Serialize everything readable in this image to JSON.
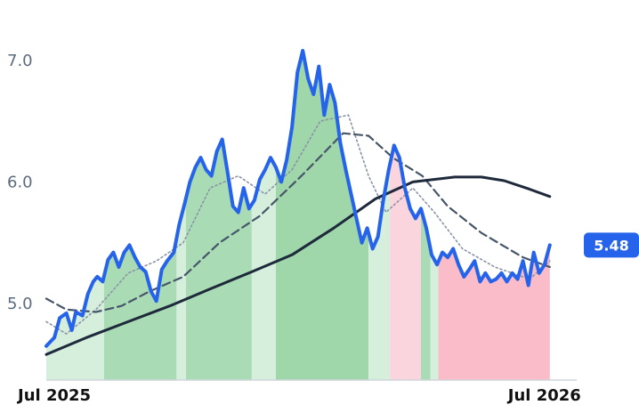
{
  "chart_data": {
    "type": "area",
    "x_range": [
      "2025-06-25",
      "2026-07-25"
    ],
    "ylim": [
      4.37,
      7.35
    ],
    "y_ticks": [
      {
        "value": 5.0,
        "label": "5.0"
      },
      {
        "value": 6.0,
        "label": "6.0"
      },
      {
        "value": 7.0,
        "label": "7.0"
      }
    ],
    "x_ticks": [
      {
        "date": "2025-07-01",
        "label": "Jul 2025"
      },
      {
        "date": "2026-07-01",
        "label": "Jul 2026"
      }
    ],
    "grid": false,
    "last_value_label": "5.48",
    "colors": {
      "price_line": "#2563eb",
      "slow_ma_line": "#1e293b",
      "mid_ma_line": "#475569",
      "fast_ma_line": "#8a93a8",
      "bull_fill": "#7fc98f",
      "bear_fill": "#f7a8b8",
      "badge": "#2563eb"
    },
    "series": [
      {
        "key": "price",
        "points": [
          [
            "2025-06-25",
            4.65
          ],
          [
            "2025-07-01",
            4.72
          ],
          [
            "2025-07-05",
            4.88
          ],
          [
            "2025-07-10",
            4.92
          ],
          [
            "2025-07-14",
            4.78
          ],
          [
            "2025-07-17",
            4.93
          ],
          [
            "2025-07-22",
            4.9
          ],
          [
            "2025-07-26",
            5.08
          ],
          [
            "2025-07-30",
            5.18
          ],
          [
            "2025-08-02",
            5.22
          ],
          [
            "2025-08-06",
            5.18
          ],
          [
            "2025-08-10",
            5.36
          ],
          [
            "2025-08-14",
            5.42
          ],
          [
            "2025-08-18",
            5.3
          ],
          [
            "2025-08-22",
            5.42
          ],
          [
            "2025-08-26",
            5.48
          ],
          [
            "2025-08-30",
            5.38
          ],
          [
            "2025-09-03",
            5.3
          ],
          [
            "2025-09-07",
            5.26
          ],
          [
            "2025-09-11",
            5.1
          ],
          [
            "2025-09-15",
            5.02
          ],
          [
            "2025-09-19",
            5.28
          ],
          [
            "2025-09-23",
            5.35
          ],
          [
            "2025-09-28",
            5.42
          ],
          [
            "2025-10-02",
            5.65
          ],
          [
            "2025-10-06",
            5.82
          ],
          [
            "2025-10-10",
            6.0
          ],
          [
            "2025-10-14",
            6.12
          ],
          [
            "2025-10-18",
            6.2
          ],
          [
            "2025-10-22",
            6.1
          ],
          [
            "2025-10-26",
            6.05
          ],
          [
            "2025-10-30",
            6.25
          ],
          [
            "2025-11-03",
            6.35
          ],
          [
            "2025-11-07",
            6.08
          ],
          [
            "2025-11-11",
            5.8
          ],
          [
            "2025-11-15",
            5.75
          ],
          [
            "2025-11-19",
            5.95
          ],
          [
            "2025-11-23",
            5.78
          ],
          [
            "2025-11-27",
            5.85
          ],
          [
            "2025-12-01",
            6.02
          ],
          [
            "2025-12-05",
            6.1
          ],
          [
            "2025-12-09",
            6.2
          ],
          [
            "2025-12-13",
            6.12
          ],
          [
            "2025-12-17",
            6.0
          ],
          [
            "2025-12-21",
            6.18
          ],
          [
            "2025-12-25",
            6.45
          ],
          [
            "2025-12-29",
            6.9
          ],
          [
            "2026-01-02",
            7.08
          ],
          [
            "2026-01-06",
            6.85
          ],
          [
            "2026-01-10",
            6.72
          ],
          [
            "2026-01-14",
            6.95
          ],
          [
            "2026-01-18",
            6.55
          ],
          [
            "2026-01-22",
            6.8
          ],
          [
            "2026-01-26",
            6.65
          ],
          [
            "2026-01-30",
            6.32
          ],
          [
            "2026-02-03",
            6.1
          ],
          [
            "2026-02-07",
            5.9
          ],
          [
            "2026-02-11",
            5.7
          ],
          [
            "2026-02-15",
            5.5
          ],
          [
            "2026-02-19",
            5.62
          ],
          [
            "2026-02-23",
            5.45
          ],
          [
            "2026-02-27",
            5.55
          ],
          [
            "2026-03-03",
            5.85
          ],
          [
            "2026-03-07",
            6.1
          ],
          [
            "2026-03-11",
            6.3
          ],
          [
            "2026-03-15",
            6.2
          ],
          [
            "2026-03-19",
            5.95
          ],
          [
            "2026-03-23",
            5.78
          ],
          [
            "2026-03-27",
            5.7
          ],
          [
            "2026-03-31",
            5.78
          ],
          [
            "2026-04-04",
            5.62
          ],
          [
            "2026-04-08",
            5.4
          ],
          [
            "2026-04-12",
            5.32
          ],
          [
            "2026-04-16",
            5.42
          ],
          [
            "2026-04-20",
            5.38
          ],
          [
            "2026-04-24",
            5.45
          ],
          [
            "2026-04-28",
            5.32
          ],
          [
            "2026-05-02",
            5.22
          ],
          [
            "2026-05-06",
            5.28
          ],
          [
            "2026-05-10",
            5.35
          ],
          [
            "2026-05-14",
            5.18
          ],
          [
            "2026-05-18",
            5.25
          ],
          [
            "2026-05-22",
            5.18
          ],
          [
            "2026-05-26",
            5.2
          ],
          [
            "2026-05-30",
            5.25
          ],
          [
            "2026-06-03",
            5.18
          ],
          [
            "2026-06-07",
            5.25
          ],
          [
            "2026-06-11",
            5.2
          ],
          [
            "2026-06-15",
            5.35
          ],
          [
            "2026-06-19",
            5.15
          ],
          [
            "2026-06-23",
            5.42
          ],
          [
            "2026-06-27",
            5.25
          ],
          [
            "2026-07-01",
            5.32
          ],
          [
            "2026-07-05",
            5.48
          ]
        ]
      },
      {
        "key": "slow_ma",
        "points": [
          [
            "2025-06-25",
            4.58
          ],
          [
            "2025-07-25",
            4.72
          ],
          [
            "2025-08-25",
            4.85
          ],
          [
            "2025-09-25",
            4.98
          ],
          [
            "2025-10-25",
            5.12
          ],
          [
            "2025-11-25",
            5.26
          ],
          [
            "2025-12-25",
            5.4
          ],
          [
            "2026-01-25",
            5.62
          ],
          [
            "2026-02-25",
            5.86
          ],
          [
            "2026-03-25",
            6.0
          ],
          [
            "2026-04-25",
            6.04
          ],
          [
            "2026-05-15",
            6.04
          ],
          [
            "2026-06-01",
            6.01
          ],
          [
            "2026-06-20",
            5.94
          ],
          [
            "2026-07-05",
            5.88
          ]
        ]
      },
      {
        "key": "mid_ma",
        "points": [
          [
            "2025-06-25",
            5.04
          ],
          [
            "2025-07-10",
            4.95
          ],
          [
            "2025-08-01",
            4.93
          ],
          [
            "2025-08-20",
            4.98
          ],
          [
            "2025-09-10",
            5.1
          ],
          [
            "2025-10-05",
            5.22
          ],
          [
            "2025-11-01",
            5.5
          ],
          [
            "2025-12-01",
            5.72
          ],
          [
            "2026-01-01",
            6.05
          ],
          [
            "2026-02-01",
            6.4
          ],
          [
            "2026-02-20",
            6.38
          ],
          [
            "2026-03-10",
            6.2
          ],
          [
            "2026-04-01",
            6.05
          ],
          [
            "2026-04-20",
            5.8
          ],
          [
            "2026-05-15",
            5.58
          ],
          [
            "2026-06-15",
            5.38
          ],
          [
            "2026-07-05",
            5.3
          ]
        ]
      },
      {
        "key": "fast_ma",
        "points": [
          [
            "2025-06-25",
            4.85
          ],
          [
            "2025-07-10",
            4.75
          ],
          [
            "2025-08-01",
            4.95
          ],
          [
            "2025-08-25",
            5.25
          ],
          [
            "2025-09-15",
            5.35
          ],
          [
            "2025-10-05",
            5.5
          ],
          [
            "2025-10-25",
            5.95
          ],
          [
            "2025-11-15",
            6.05
          ],
          [
            "2025-12-05",
            5.9
          ],
          [
            "2025-12-25",
            6.1
          ],
          [
            "2026-01-15",
            6.5
          ],
          [
            "2026-02-05",
            6.55
          ],
          [
            "2026-02-20",
            6.05
          ],
          [
            "2026-03-05",
            5.75
          ],
          [
            "2026-03-25",
            5.95
          ],
          [
            "2026-04-10",
            5.75
          ],
          [
            "2026-05-01",
            5.45
          ],
          [
            "2026-05-25",
            5.3
          ],
          [
            "2026-06-20",
            5.2
          ],
          [
            "2026-07-05",
            5.35
          ]
        ]
      }
    ],
    "fill_segments": [
      {
        "start": "2025-06-25",
        "end": "2025-08-07",
        "color": "#d6eedc"
      },
      {
        "start": "2025-08-07",
        "end": "2025-09-30",
        "color": "#a9dcb4"
      },
      {
        "start": "2025-09-30",
        "end": "2025-10-07",
        "color": "#d6eedc"
      },
      {
        "start": "2025-10-07",
        "end": "2025-11-25",
        "color": "#a9dcb4"
      },
      {
        "start": "2025-11-25",
        "end": "2025-12-13",
        "color": "#d6eedc"
      },
      {
        "start": "2025-12-13",
        "end": "2026-02-20",
        "color": "#9fd7ab"
      },
      {
        "start": "2026-02-20",
        "end": "2026-03-08",
        "color": "#d6eedc"
      },
      {
        "start": "2026-03-08",
        "end": "2026-03-31",
        "color": "#fbd5dd"
      },
      {
        "start": "2026-03-31",
        "end": "2026-04-07",
        "color": "#a9dcb4"
      },
      {
        "start": "2026-04-07",
        "end": "2026-04-13",
        "color": "#d6eedc"
      },
      {
        "start": "2026-04-13",
        "end": "2026-07-05",
        "color": "#f9bcc8"
      }
    ]
  }
}
